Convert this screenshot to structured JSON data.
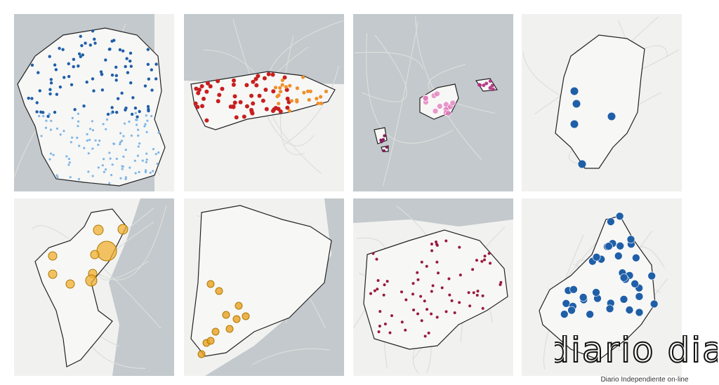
{
  "logo": {
    "title": "diario dia",
    "tagline": "Diario Independiente on-line"
  }
}
